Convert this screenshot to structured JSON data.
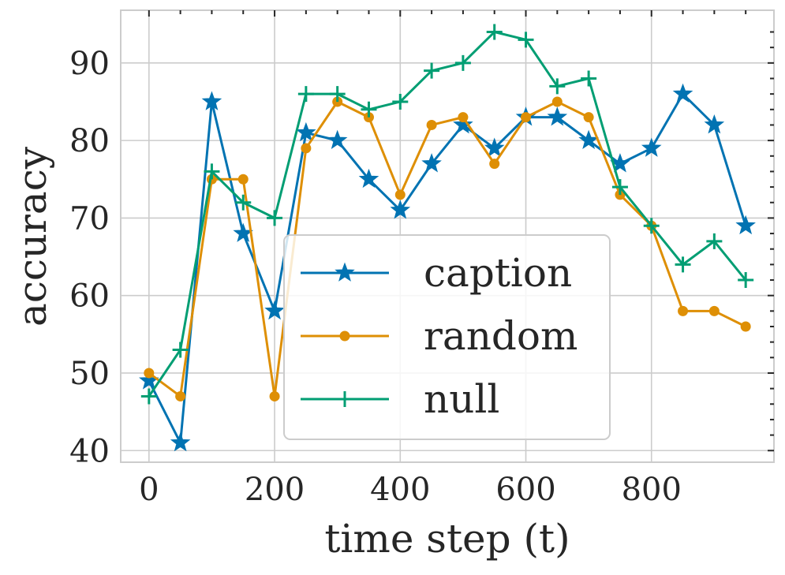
{
  "chart_data": {
    "type": "line",
    "xlabel": "time step (t)",
    "ylabel": "accuracy",
    "xlim": [
      -45,
      995
    ],
    "ylim": [
      38.5,
      96.8
    ],
    "x_ticks": [
      0,
      200,
      400,
      600,
      800
    ],
    "y_ticks": [
      40,
      50,
      60,
      70,
      80,
      90
    ],
    "grid": true,
    "legend_position": "lower-center",
    "x": [
      0,
      50,
      100,
      150,
      200,
      250,
      300,
      350,
      400,
      450,
      500,
      550,
      600,
      650,
      700,
      750,
      800,
      850,
      900,
      950
    ],
    "series": [
      {
        "name": "caption",
        "color": "#0173b2",
        "marker": "star",
        "values": [
          49,
          41,
          85,
          68,
          58,
          81,
          80,
          75,
          71,
          77,
          82,
          79,
          83,
          83,
          80,
          77,
          79,
          86,
          82,
          69
        ]
      },
      {
        "name": "random",
        "color": "#de8f05",
        "marker": "circle",
        "values": [
          50,
          47,
          75,
          75,
          47,
          79,
          85,
          83,
          73,
          82,
          83,
          77,
          83,
          85,
          83,
          73,
          69,
          58,
          58,
          56
        ]
      },
      {
        "name": "null",
        "color": "#029e73",
        "marker": "plus",
        "values": [
          47,
          53,
          76,
          72,
          70,
          86,
          86,
          84,
          85,
          89,
          90,
          94,
          93,
          87,
          88,
          74,
          69,
          64,
          67,
          62
        ]
      }
    ]
  }
}
